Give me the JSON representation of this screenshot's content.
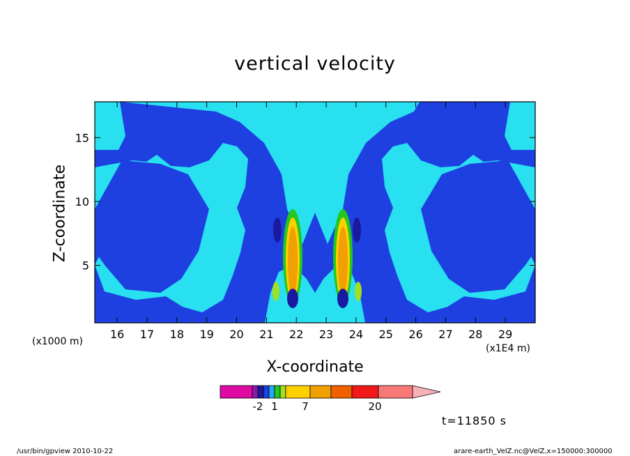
{
  "chart_data": {
    "type": "contour",
    "title": "vertical velocity",
    "xlabel": "X-coordinate",
    "ylabel": "Z-coordinate",
    "x_unit_left": "(x1000 m)",
    "x_unit_right": "(x1E4 m)",
    "x_range": [
      15.25,
      30.0
    ],
    "y_range": [
      0.5,
      17.8
    ],
    "x_ticks": [
      16,
      17,
      18,
      19,
      20,
      21,
      22,
      23,
      24,
      25,
      26,
      27,
      28,
      29
    ],
    "y_ticks": [
      5,
      10,
      15
    ],
    "colorbar": {
      "colors": [
        "#e00aa5",
        "#8c1aa8",
        "#1a1aa0",
        "#1e40e0",
        "#28a8f0",
        "#20c820",
        "#a0e020",
        "#ffd000",
        "#f0a000",
        "#f06000",
        "#f01818",
        "#f87878",
        "#f8b0b8"
      ],
      "tick_labels": [
        "-2",
        "1",
        "7",
        "20"
      ]
    },
    "time_label": "t=11850 s",
    "footer_left": "/usr/bin/gpview   2010-10-22",
    "footer_right": "arare-earth_VelZ.nc@VelZ,x=150000:300000"
  }
}
